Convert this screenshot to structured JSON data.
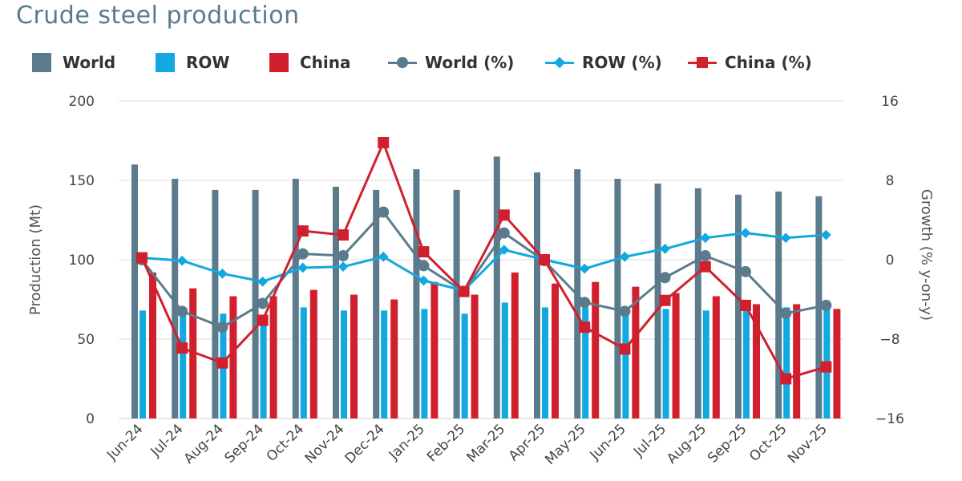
{
  "chart_data": {
    "type": "bar",
    "title": "Crude steel production",
    "categories": [
      "Jun-24",
      "Jul-24",
      "Aug-24",
      "Sep-24",
      "Oct-24",
      "Nov-24",
      "Dec-24",
      "Jan-25",
      "Feb-25",
      "Mar-25",
      "Apr-25",
      "May-25",
      "Jun-25",
      "Jul-25",
      "Aug-25",
      "Sep-25",
      "Oct-25",
      "Nov-25"
    ],
    "bar_series": [
      {
        "name": "World",
        "color": "#5b7b8c",
        "values": [
          160,
          151,
          144,
          144,
          151,
          146,
          144,
          157,
          144,
          165,
          155,
          157,
          151,
          148,
          145,
          141,
          143,
          140
        ]
      },
      {
        "name": "ROW",
        "color": "#12a8e0",
        "values": [
          68,
          69,
          66,
          64,
          70,
          68,
          68,
          69,
          66,
          73,
          70,
          70,
          69,
          69,
          68,
          69,
          70,
          70
        ]
      },
      {
        "name": "China",
        "color": "#d0202e",
        "values": [
          92,
          82,
          77,
          77,
          81,
          78,
          75,
          86,
          78,
          92,
          85,
          86,
          83,
          79,
          77,
          72,
          72,
          69
        ]
      }
    ],
    "line_series": [
      {
        "name": "World (%)",
        "color": "#5b7b8c",
        "marker": "circle",
        "values": [
          0,
          -5.2,
          -6.8,
          -4.4,
          0.6,
          0.4,
          4.8,
          -0.6,
          -3.2,
          2.7,
          -0.1,
          -4.3,
          -5.2,
          -1.8,
          0.4,
          -1.2,
          -5.4,
          -4.6
        ]
      },
      {
        "name": "ROW (%)",
        "color": "#12a8e0",
        "marker": "diamond",
        "values": [
          0.2,
          -0.1,
          -1.4,
          -2.2,
          -0.8,
          -0.7,
          0.3,
          -2.1,
          -3.1,
          1.0,
          0,
          -0.9,
          0.3,
          1.1,
          2.2,
          2.7,
          2.2,
          2.5
        ]
      },
      {
        "name": "China (%)",
        "color": "#d0202e",
        "marker": "square",
        "values": [
          0.2,
          -8.9,
          -10.4,
          -6.1,
          2.9,
          2.5,
          11.8,
          0.8,
          -3.2,
          4.5,
          0,
          -6.8,
          -9.0,
          -4.1,
          -0.7,
          -4.6,
          -12.0,
          -10.8
        ]
      }
    ],
    "y_left": {
      "label": "Production (Mt)",
      "ylim": [
        0,
        200
      ],
      "ticks": [
        "0",
        "50",
        "100",
        "150",
        "200"
      ],
      "values": [
        0,
        50,
        100,
        150,
        200
      ]
    },
    "y_right": {
      "label": "Growth (% y-on-y)",
      "ylim": [
        -16,
        16
      ],
      "ticks": [
        "−16",
        "−8",
        "0",
        "8",
        "16"
      ],
      "values": [
        -16,
        -8,
        0,
        8,
        16
      ]
    },
    "grid": true,
    "legend_position": "top"
  },
  "legend": [
    {
      "label": "World",
      "kind": "bar",
      "color": "#5b7b8c"
    },
    {
      "label": "ROW",
      "kind": "bar",
      "color": "#12a8e0"
    },
    {
      "label": "China",
      "kind": "bar",
      "color": "#d0202e"
    },
    {
      "label": "World (%)",
      "kind": "line",
      "marker": "circle",
      "color": "#5b7b8c"
    },
    {
      "label": "ROW (%)",
      "kind": "line",
      "marker": "diamond",
      "color": "#12a8e0"
    },
    {
      "label": "China (%)",
      "kind": "line",
      "marker": "square",
      "color": "#d0202e"
    }
  ]
}
